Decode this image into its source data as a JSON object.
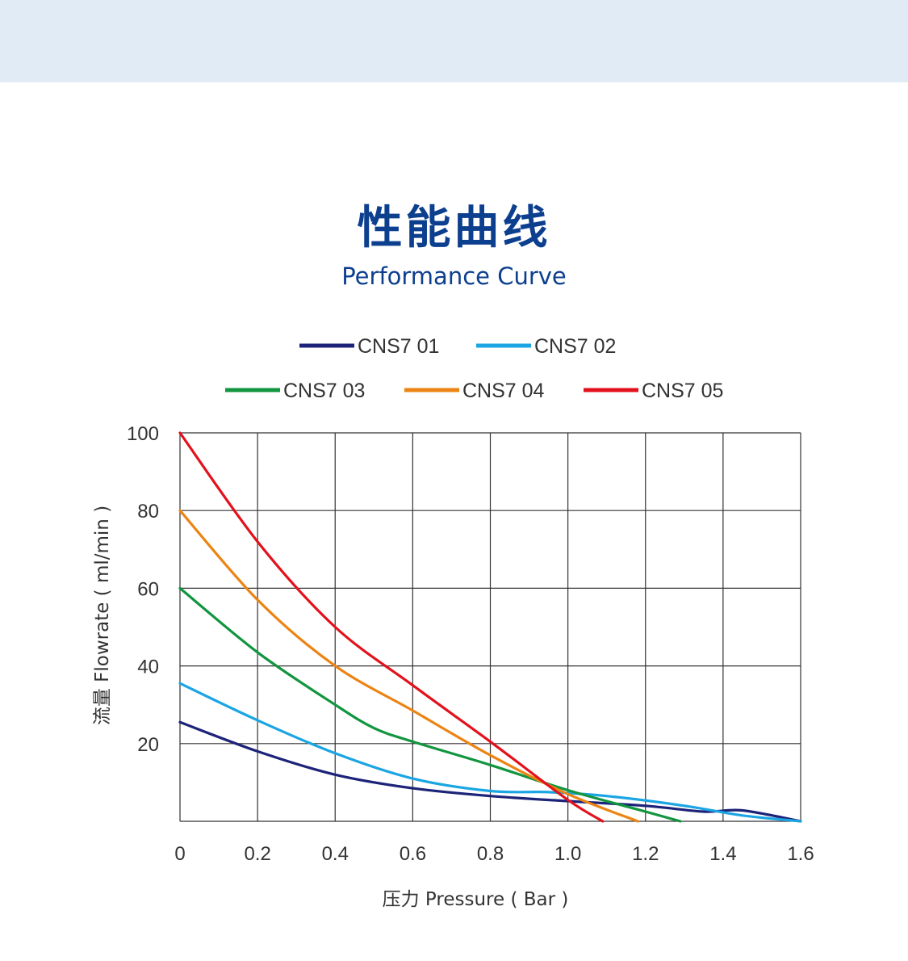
{
  "header": {
    "title_cn": "性能曲线",
    "title_en": "Performance Curve"
  },
  "colors": {
    "band": "#e1ebf6",
    "title": "#0d3f8f",
    "grid": "#333333"
  },
  "chart_data": {
    "type": "line",
    "xlabel": "压力 Pressure ( Bar )",
    "ylabel": "流量 Flowrate ( ml/min )",
    "xlim": [
      0,
      1.6
    ],
    "ylim": [
      0,
      100
    ],
    "xticks": [
      0,
      0.2,
      0.4,
      0.6,
      0.8,
      1.0,
      1.2,
      1.4,
      1.6
    ],
    "xtick_labels": [
      "0",
      "0.2",
      "0.4",
      "0.6",
      "0.8",
      "1.0",
      "1.2",
      "1.4",
      "1.6"
    ],
    "yticks": [
      20,
      40,
      60,
      80,
      100
    ],
    "ytick_labels": [
      "20",
      "40",
      "60",
      "80",
      "100"
    ],
    "grid": true,
    "legend_position": "top",
    "series": [
      {
        "name": "CNS7 01",
        "color": "#1c2378",
        "x": [
          0,
          0.2,
          0.4,
          0.6,
          0.8,
          1.0,
          1.2,
          1.35,
          1.45,
          1.6
        ],
        "y": [
          25.5,
          18,
          12,
          8.5,
          6.5,
          5.2,
          4,
          2.5,
          2.8,
          0
        ]
      },
      {
        "name": "CNS7 02",
        "color": "#1ba5e3",
        "x": [
          0,
          0.2,
          0.4,
          0.6,
          0.8,
          0.95,
          1.1,
          1.3,
          1.45,
          1.6
        ],
        "y": [
          35.5,
          26,
          17.5,
          11,
          7.8,
          7.5,
          6.5,
          4,
          1.5,
          0
        ]
      },
      {
        "name": "CNS7 03",
        "color": "#12953f",
        "x": [
          0,
          0.2,
          0.4,
          0.5,
          0.6,
          0.8,
          1.0,
          1.2,
          1.29
        ],
        "y": [
          60,
          43.5,
          30,
          24,
          20.5,
          14.5,
          8,
          2.5,
          0
        ]
      },
      {
        "name": "CNS7 04",
        "color": "#ec8413",
        "x": [
          0,
          0.2,
          0.4,
          0.6,
          0.8,
          1.0,
          1.18
        ],
        "y": [
          80,
          57,
          40,
          28.5,
          17,
          7,
          0
        ]
      },
      {
        "name": "CNS7 05",
        "color": "#e3111b",
        "x": [
          0,
          0.2,
          0.4,
          0.6,
          0.8,
          1.0,
          1.09
        ],
        "y": [
          100,
          72,
          50,
          35,
          20.5,
          5.5,
          0
        ]
      }
    ]
  }
}
